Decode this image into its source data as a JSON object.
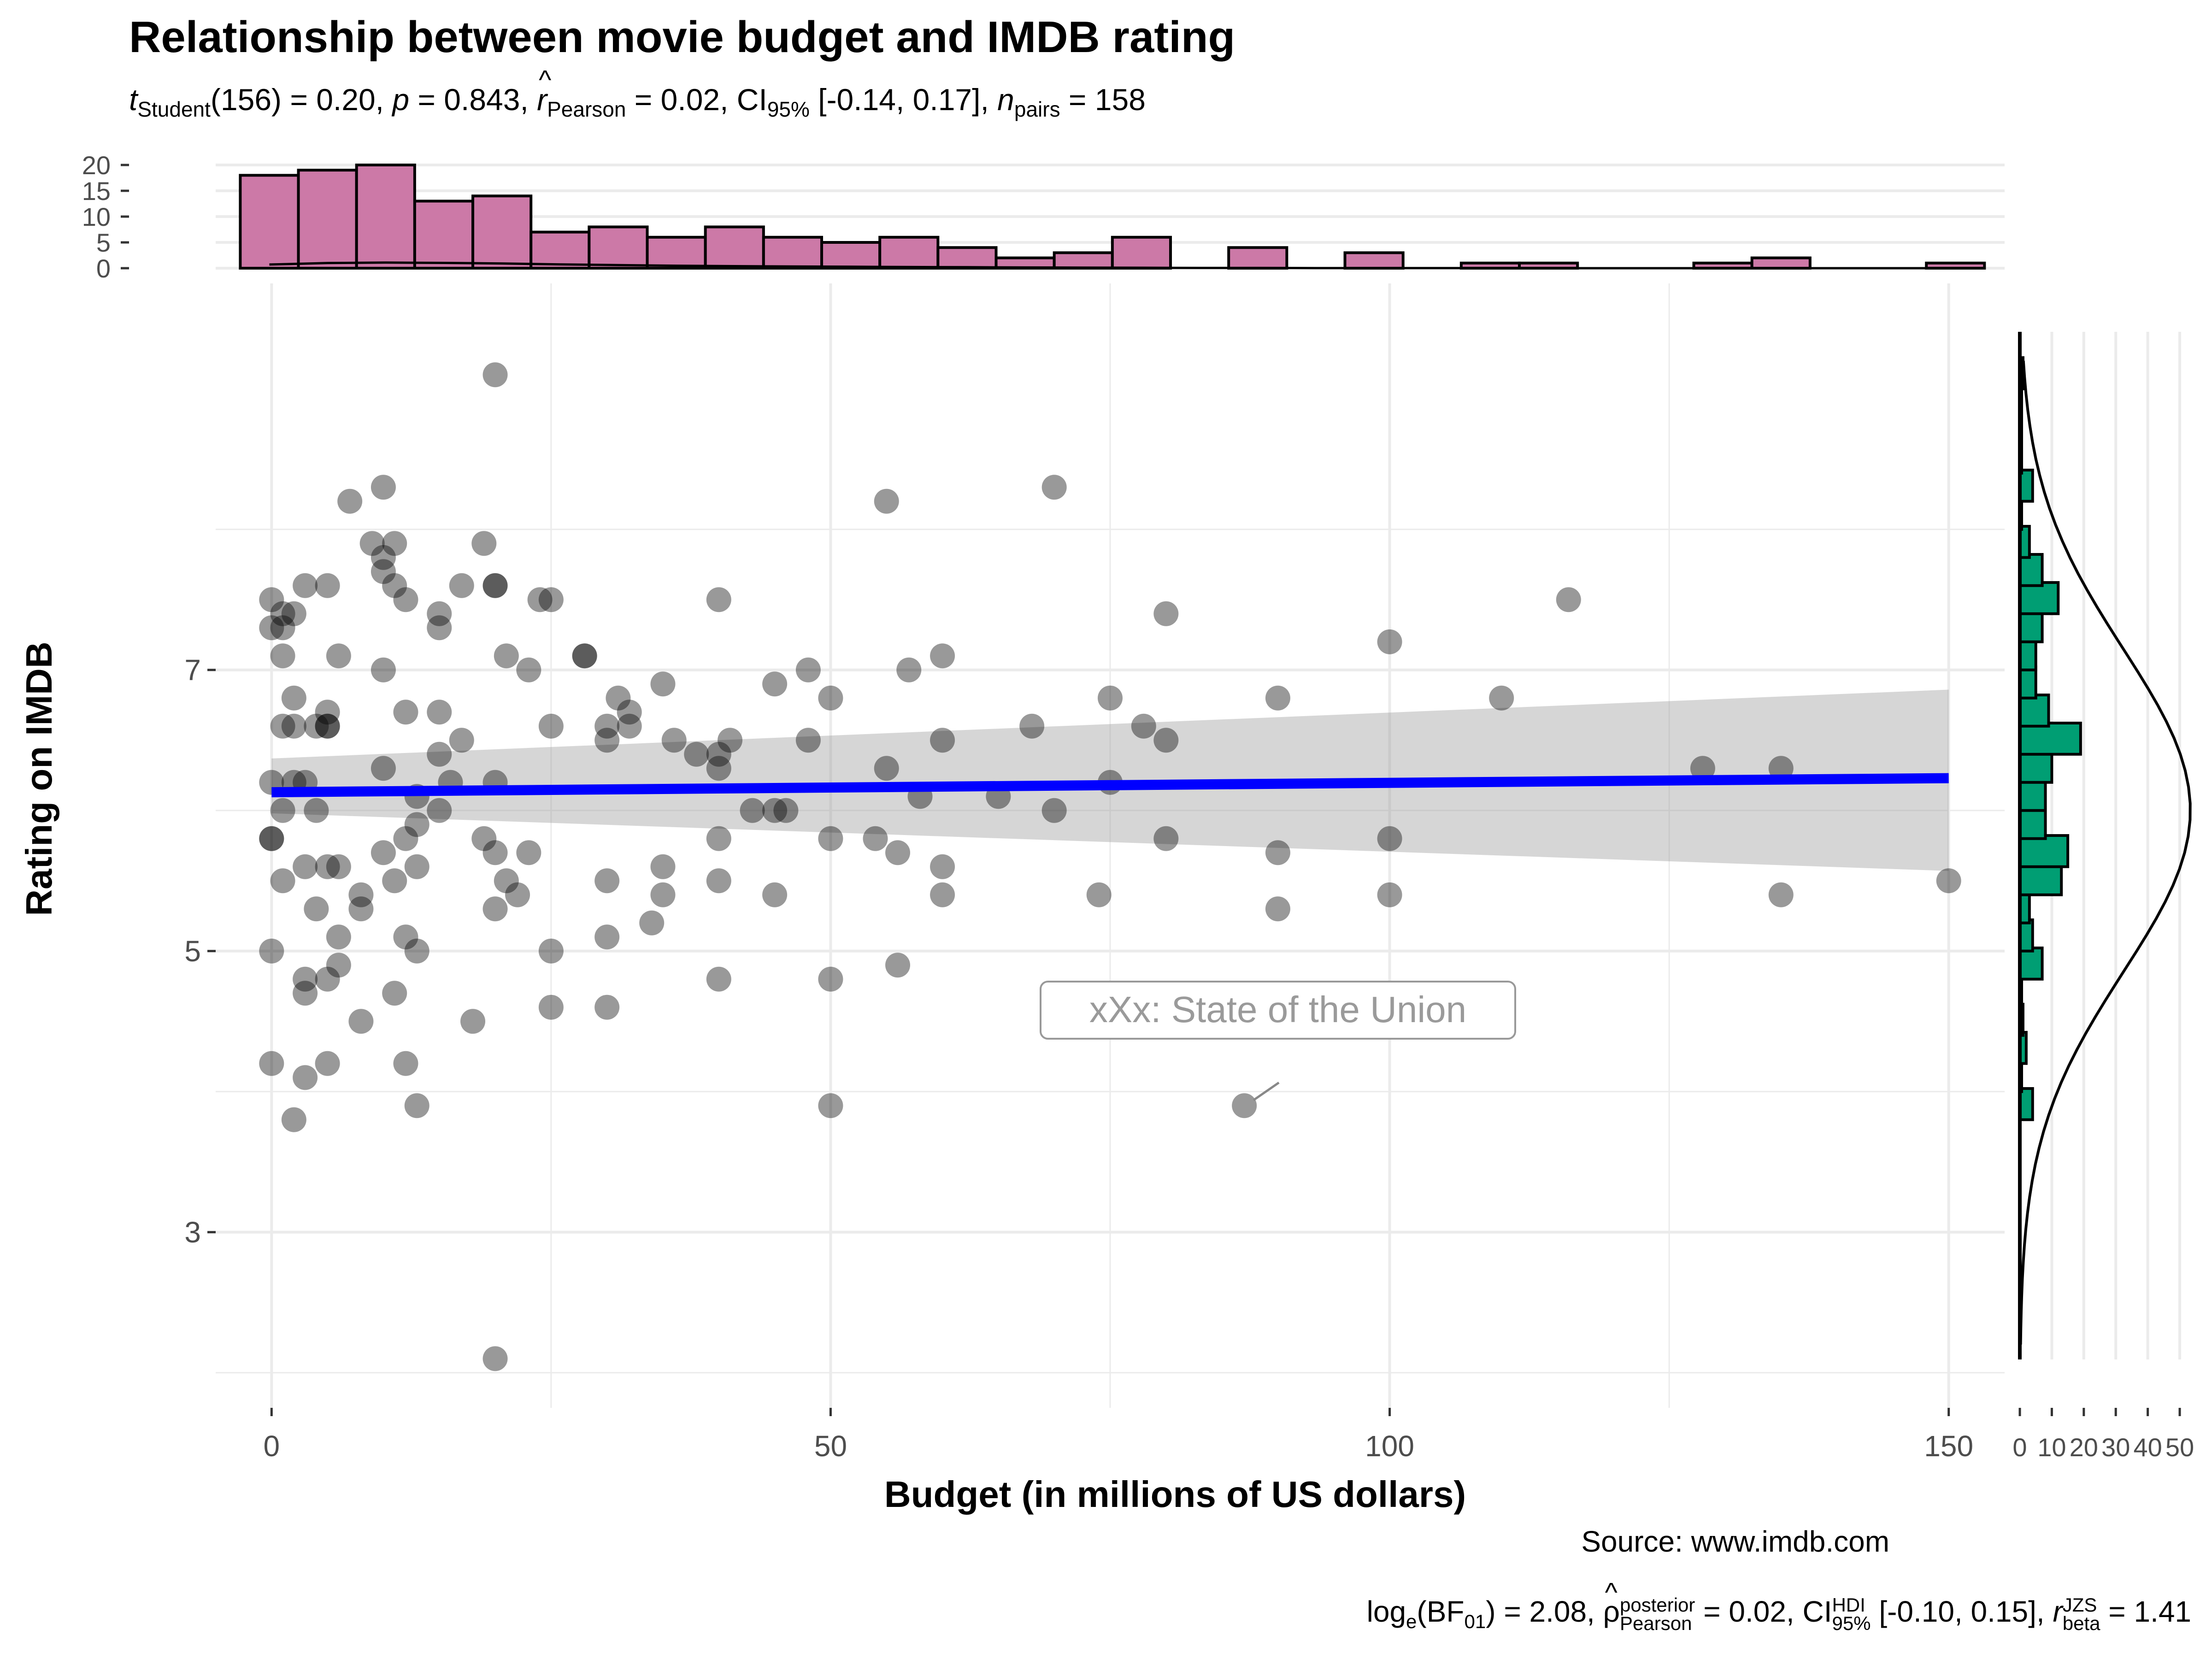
{
  "chart_data": {
    "type": "scatter",
    "title": "Relationship between movie budget and IMDB rating",
    "subtitle": {
      "t_label": "t",
      "t_sub": "Student",
      "t_value": "(156) = 0.20, ",
      "p_label": "p",
      "p_value": " = 0.843, ",
      "r_label": "r",
      "r_sub": "Pearson",
      "r_value": " = 0.02, CI",
      "ci_sub": "95%",
      "ci_value": " [-0.14, 0.17], ",
      "n_label": "n",
      "n_sub": "pairs",
      "n_value": " = 158"
    },
    "xlabel": "Budget (in millions of US dollars)",
    "ylabel": "Rating on IMDB",
    "xlim": [
      -5,
      155
    ],
    "ylim": [
      1.75,
      9.75
    ],
    "x_ticks": [
      0,
      50,
      100,
      150
    ],
    "y_ticks": [
      3,
      5,
      7
    ],
    "y_ticks_labels": [
      "3",
      "5",
      "7"
    ],
    "x_ticks_labels": [
      "0",
      "50",
      "100",
      "150"
    ],
    "points": [
      [
        0,
        7.3
      ],
      [
        0,
        7.5
      ],
      [
        0,
        6.2
      ],
      [
        0,
        5.8
      ],
      [
        0,
        5.8
      ],
      [
        0,
        5.0
      ],
      [
        0,
        4.2
      ],
      [
        1,
        7.4
      ],
      [
        1,
        7.3
      ],
      [
        1,
        7.1
      ],
      [
        1,
        6.6
      ],
      [
        1,
        6.0
      ],
      [
        1,
        5.5
      ],
      [
        2,
        7.4
      ],
      [
        2,
        6.8
      ],
      [
        2,
        6.2
      ],
      [
        2,
        3.8
      ],
      [
        2,
        6.6
      ],
      [
        3,
        6.2
      ],
      [
        3,
        5.6
      ],
      [
        3,
        7.6
      ],
      [
        3,
        4.7
      ],
      [
        3,
        4.1
      ],
      [
        3,
        4.8
      ],
      [
        4,
        6.6
      ],
      [
        4,
        6.0
      ],
      [
        4,
        5.3
      ],
      [
        5,
        7.6
      ],
      [
        5,
        6.7
      ],
      [
        5,
        6.6
      ],
      [
        5,
        5.6
      ],
      [
        5,
        4.8
      ],
      [
        5,
        4.2
      ],
      [
        5,
        6.6
      ],
      [
        6,
        7.1
      ],
      [
        6,
        5.6
      ],
      [
        6,
        5.1
      ],
      [
        6,
        4.9
      ],
      [
        7,
        8.2
      ],
      [
        8,
        5.4
      ],
      [
        8,
        5.3
      ],
      [
        8,
        4.5
      ],
      [
        9,
        7.9
      ],
      [
        10,
        7.8
      ],
      [
        10,
        8.3
      ],
      [
        10,
        7.7
      ],
      [
        10,
        7.0
      ],
      [
        10,
        6.3
      ],
      [
        10,
        5.7
      ],
      [
        11,
        7.6
      ],
      [
        11,
        7.9
      ],
      [
        11,
        5.5
      ],
      [
        11,
        4.7
      ],
      [
        12,
        7.5
      ],
      [
        12,
        6.7
      ],
      [
        12,
        5.8
      ],
      [
        12,
        5.1
      ],
      [
        12,
        4.2
      ],
      [
        13,
        6.1
      ],
      [
        13,
        5.9
      ],
      [
        13,
        5.6
      ],
      [
        13,
        5.0
      ],
      [
        13,
        3.9
      ],
      [
        15,
        7.4
      ],
      [
        15,
        7.3
      ],
      [
        15,
        6.7
      ],
      [
        15,
        6.4
      ],
      [
        15,
        6.0
      ],
      [
        16,
        6.2
      ],
      [
        17,
        7.6
      ],
      [
        17,
        6.5
      ],
      [
        18,
        4.5
      ],
      [
        19,
        7.9
      ],
      [
        19,
        5.8
      ],
      [
        20,
        9.1
      ],
      [
        20,
        7.6
      ],
      [
        20,
        7.6
      ],
      [
        20,
        6.2
      ],
      [
        20,
        5.7
      ],
      [
        20,
        5.3
      ],
      [
        20,
        2.1
      ],
      [
        21,
        5.5
      ],
      [
        21,
        7.1
      ],
      [
        22,
        5.4
      ],
      [
        23,
        7.0
      ],
      [
        23,
        5.7
      ],
      [
        24,
        7.5
      ],
      [
        25,
        7.5
      ],
      [
        25,
        6.6
      ],
      [
        25,
        5.0
      ],
      [
        25,
        4.6
      ],
      [
        28,
        7.1
      ],
      [
        28,
        7.1
      ],
      [
        30,
        6.6
      ],
      [
        30,
        6.5
      ],
      [
        30,
        5.5
      ],
      [
        30,
        5.1
      ],
      [
        30,
        4.6
      ],
      [
        31,
        6.8
      ],
      [
        32,
        6.7
      ],
      [
        32,
        6.6
      ],
      [
        34,
        5.2
      ],
      [
        35,
        6.9
      ],
      [
        35,
        5.6
      ],
      [
        35,
        5.4
      ],
      [
        36,
        6.5
      ],
      [
        38,
        6.4
      ],
      [
        40,
        7.5
      ],
      [
        40,
        6.4
      ],
      [
        40,
        6.3
      ],
      [
        40,
        5.8
      ],
      [
        40,
        5.5
      ],
      [
        40,
        4.8
      ],
      [
        41,
        6.5
      ],
      [
        43,
        6.0
      ],
      [
        45,
        6.9
      ],
      [
        45,
        6.0
      ],
      [
        45,
        5.4
      ],
      [
        46,
        6.0
      ],
      [
        48,
        7.0
      ],
      [
        48,
        6.5
      ],
      [
        50,
        6.8
      ],
      [
        50,
        5.8
      ],
      [
        50,
        4.8
      ],
      [
        50,
        3.9
      ],
      [
        54,
        5.8
      ],
      [
        55,
        8.2
      ],
      [
        55,
        6.3
      ],
      [
        56,
        5.7
      ],
      [
        56,
        4.9
      ],
      [
        57,
        7.0
      ],
      [
        58,
        6.1
      ],
      [
        60,
        7.1
      ],
      [
        60,
        6.5
      ],
      [
        60,
        5.6
      ],
      [
        60,
        5.4
      ],
      [
        65,
        6.1
      ],
      [
        68,
        6.6
      ],
      [
        70,
        8.3
      ],
      [
        70,
        6.0
      ],
      [
        74,
        5.4
      ],
      [
        75,
        6.8
      ],
      [
        75,
        6.2
      ],
      [
        78,
        6.6
      ],
      [
        80,
        7.4
      ],
      [
        80,
        6.5
      ],
      [
        80,
        5.8
      ],
      [
        87,
        3.9
      ],
      [
        90,
        6.8
      ],
      [
        90,
        5.7
      ],
      [
        90,
        5.3
      ],
      [
        100,
        7.2
      ],
      [
        100,
        5.8
      ],
      [
        100,
        5.4
      ],
      [
        110,
        6.8
      ],
      [
        116,
        7.5
      ],
      [
        128,
        6.3
      ],
      [
        135,
        6.3
      ],
      [
        135,
        5.4
      ],
      [
        150,
        5.5
      ]
    ],
    "regression": {
      "x": [
        0,
        150
      ],
      "y": [
        6.13,
        6.23
      ],
      "ci_lower": [
        5.98,
        5.57
      ],
      "ci_upper": [
        6.37,
        6.86
      ]
    },
    "annotation": {
      "label": "xXx: State of the Union",
      "x": 87,
      "y": 3.9
    },
    "top_histogram": {
      "bin_width": 5.2,
      "start": -2.8,
      "counts": [
        18,
        19,
        20,
        13,
        14,
        7,
        8,
        6,
        8,
        6,
        5,
        6,
        4,
        2,
        3,
        6,
        0,
        4,
        0,
        3,
        0,
        1,
        1,
        0,
        0,
        1,
        2,
        0,
        0,
        1
      ],
      "y_ticks": [
        0,
        5,
        10,
        15,
        20
      ],
      "y_ticks_labels": [
        "0",
        "5",
        "10",
        "15",
        "20"
      ],
      "density": [
        0.25,
        0.35,
        0.38,
        0.36,
        0.32,
        0.26,
        0.21,
        0.17,
        0.14,
        0.12,
        0.1,
        0.08,
        0.07,
        0.05,
        0.04,
        0.03,
        0.02,
        0.02,
        0.01,
        0.01,
        0.01,
        0.01,
        0.0,
        0.0,
        0.0,
        0.0,
        0.0,
        0.0,
        0.0,
        0.0
      ]
    },
    "right_histogram": {
      "bin_height": 0.222,
      "bins": [
        [
          3.8,
          4
        ],
        [
          4.0,
          0
        ],
        [
          4.2,
          2
        ],
        [
          4.4,
          1
        ],
        [
          4.6,
          0
        ],
        [
          4.8,
          7
        ],
        [
          5.0,
          4
        ],
        [
          5.2,
          3
        ],
        [
          5.4,
          13
        ],
        [
          5.6,
          15
        ],
        [
          5.8,
          8
        ],
        [
          6.0,
          8
        ],
        [
          6.2,
          10
        ],
        [
          6.4,
          19
        ],
        [
          6.6,
          9
        ],
        [
          6.8,
          5
        ],
        [
          7.0,
          5
        ],
        [
          7.2,
          7
        ],
        [
          7.4,
          12
        ],
        [
          7.6,
          7
        ],
        [
          7.8,
          3
        ],
        [
          8.0,
          0
        ],
        [
          8.2,
          4
        ],
        [
          8.4,
          0
        ],
        [
          8.6,
          0
        ],
        [
          8.8,
          0
        ],
        [
          9.0,
          1
        ]
      ],
      "x_ticks": [
        0,
        10,
        20,
        30,
        40,
        50
      ],
      "x_ticks_labels": [
        "0",
        "10",
        "20",
        "30",
        "40",
        "50"
      ]
    },
    "colors": {
      "points": "#000000",
      "regression": "#0000FF",
      "ci_band": "#999999",
      "top_hist": "#CC79A7",
      "right_hist": "#009E73",
      "grid": "#EBEBEB"
    }
  },
  "caption": {
    "source": "Source: www.imdb.com",
    "bf_prefix": "log",
    "bf_sub_e": "e",
    "bf_value": "(BF",
    "bf_sub_01": "01",
    "bf_rest": ") = 2.08, ",
    "rho": "ρ",
    "rho_sup": "posterior",
    "rho_sub": "Pearson",
    "rho_value": " = 0.02, CI",
    "ci_sup": "HDI",
    "ci_sub": "95%",
    "ci_value": " [-0.10, 0.15], ",
    "r_label": "r",
    "r_sup": "JZS",
    "r_sub": "beta",
    "r_value": " = 1.41"
  }
}
